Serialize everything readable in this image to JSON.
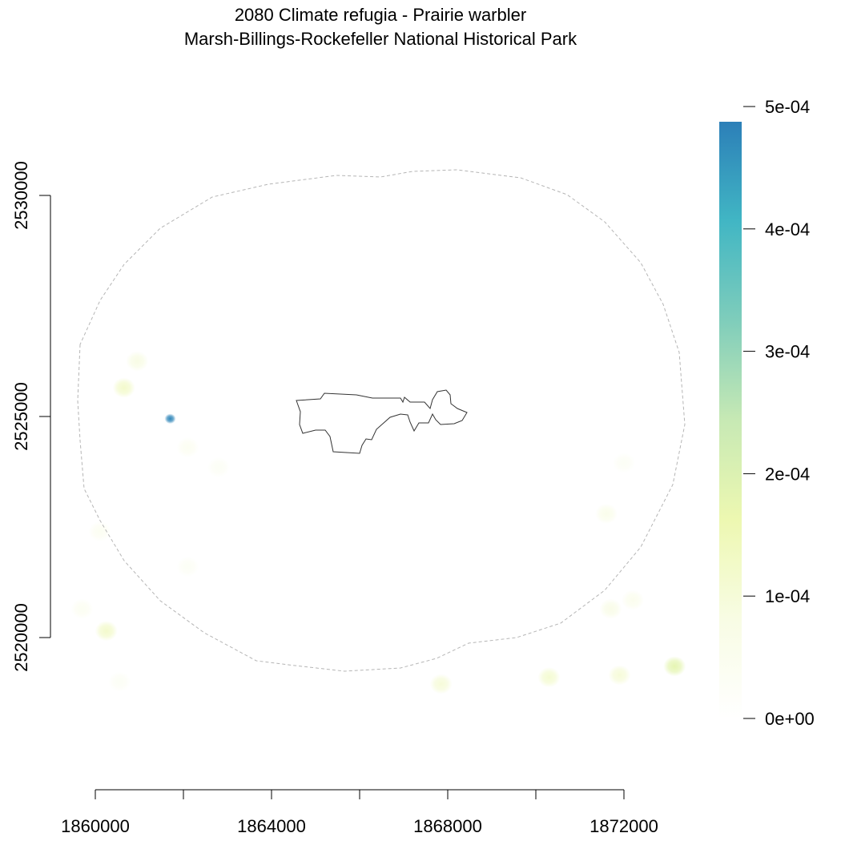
{
  "title": {
    "line1": "2080 Climate refugia - Prairie warbler",
    "line2": "Marsh-Billings-Rockefeller National Historical Park"
  },
  "map": {
    "x_axis": {
      "ticks": [
        1860000,
        1862000,
        1864000,
        1866000,
        1868000,
        1870000,
        1872000
      ],
      "labels": [
        "1860000",
        "",
        "1864000",
        "",
        "1868000",
        "",
        "1872000"
      ]
    },
    "y_axis": {
      "ticks": [
        2520000,
        2525000,
        2530000
      ],
      "labels": [
        "2520000",
        "2525000",
        "2530000"
      ]
    },
    "legend": {
      "ticks": [
        0,
        0.0001,
        0.0002,
        0.0003,
        0.0004,
        0.0005
      ],
      "labels": [
        "0e+00",
        "1e-04",
        "2e-04",
        "3e-04",
        "4e-04",
        "5e-04"
      ],
      "max_value": 0.00049,
      "colors": [
        "#ffffff",
        "#f8fce4",
        "#edf8b1",
        "#c7e9b4",
        "#7fcdbb",
        "#41b6c4",
        "#2c7fb8"
      ]
    },
    "hotspots": [
      {
        "x": 1861700,
        "y": 2524950,
        "value": 0.00048
      },
      {
        "x": 1860650,
        "y": 2525650,
        "value": 0.00012
      },
      {
        "x": 1860950,
        "y": 2526250,
        "value": 8e-05
      },
      {
        "x": 1862100,
        "y": 2524300,
        "value": 4e-05
      },
      {
        "x": 1862800,
        "y": 2523850,
        "value": 3e-05
      },
      {
        "x": 1860250,
        "y": 2520150,
        "value": 0.00012
      },
      {
        "x": 1859700,
        "y": 2520650,
        "value": 4e-05
      },
      {
        "x": 1860100,
        "y": 2522400,
        "value": 4e-05
      },
      {
        "x": 1862100,
        "y": 2521600,
        "value": 3e-05
      },
      {
        "x": 1867850,
        "y": 2518950,
        "value": 0.0001
      },
      {
        "x": 1870300,
        "y": 2519100,
        "value": 0.00011
      },
      {
        "x": 1871900,
        "y": 2519150,
        "value": 0.0001
      },
      {
        "x": 1873150,
        "y": 2519350,
        "value": 0.00018
      },
      {
        "x": 1871700,
        "y": 2520650,
        "value": 7e-05
      },
      {
        "x": 1872200,
        "y": 2520850,
        "value": 5e-05
      },
      {
        "x": 1871600,
        "y": 2522800,
        "value": 6e-05
      },
      {
        "x": 1872000,
        "y": 2523950,
        "value": 3e-05
      },
      {
        "x": 1860550,
        "y": 2519000,
        "value": 3e-05
      }
    ]
  }
}
